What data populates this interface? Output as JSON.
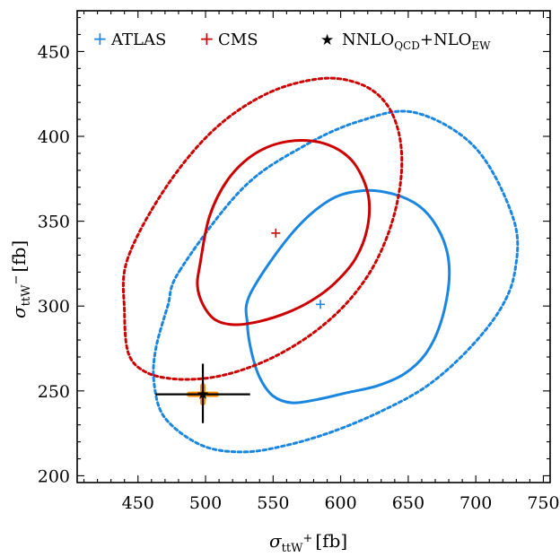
{
  "chart_data": {
    "type": "scatter",
    "title": "",
    "xlabel": {
      "symbol": "σ",
      "sub": "ttW",
      "sup": "+",
      "unit": "[fb]"
    },
    "ylabel": {
      "symbol": "σ",
      "sub": "ttW",
      "sup": "−",
      "unit": "[fb]"
    },
    "xlim": [
      405,
      755
    ],
    "ylim": [
      196,
      474
    ],
    "xticks": [
      450,
      500,
      550,
      600,
      650,
      700,
      750
    ],
    "yticks": [
      200,
      250,
      300,
      350,
      400,
      450
    ],
    "grid": false,
    "legend_position": "top",
    "colors": {
      "atlas": "#1a86e0",
      "cms": "#cc0000",
      "theory": "#000000",
      "theory_band": "#ff8c00"
    },
    "legend": [
      {
        "id": "atlas",
        "label": "ATLAS",
        "marker": "+"
      },
      {
        "id": "cms",
        "label": "CMS",
        "marker": "+"
      },
      {
        "id": "theory",
        "label_main": "NNLO",
        "label_sub1": "QCD",
        "label_mid": "+NLO",
        "label_sub2": "EW",
        "marker": "★"
      }
    ],
    "series": [
      {
        "name": "ATLAS",
        "point": [
          585,
          301
        ],
        "contours": [
          {
            "level": "inner",
            "style": "solid",
            "center": [
              585,
              301
            ],
            "x": [
              533,
              563,
              591,
              616,
              639,
              658,
              671,
              679,
              680,
              674,
              663,
              647,
              627,
              605,
              583,
              564,
              550,
              540,
              534,
              531,
              533
            ],
            "y": [
              307,
              342,
              362,
              368,
              366,
              359,
              347,
              331,
              313,
              290,
              272,
              260,
              253,
              249,
              245,
              243,
              247,
              258,
              273,
              289,
              307
            ]
          },
          {
            "level": "outer",
            "style": "dotted",
            "center": [
              585,
              301
            ],
            "x": [
              481,
              527,
              572,
              614,
              655,
              700,
              728,
              729,
              718,
              694,
              664,
              630,
              594,
              560,
              528,
              497,
              470,
              462,
              463,
              472,
              481
            ],
            "y": [
              321,
              369,
              394,
              409,
              414,
              393,
              351,
              321,
              298,
              274,
              253,
              238,
              226,
              218,
              214,
              218,
              234,
              254,
              274,
              300,
              321
            ]
          }
        ]
      },
      {
        "name": "CMS",
        "point": [
          552,
          343
        ],
        "contours": [
          {
            "level": "inner",
            "style": "solid",
            "center": [
              552,
              343
            ],
            "x": [
              496,
              503,
              517,
              537,
              561,
              587,
              608,
              620,
              620,
              611,
              595,
              578,
              560,
              540,
              521,
              507,
              498,
              494,
              496
            ],
            "y": [
              325,
              353,
              375,
              390,
              397,
              396,
              386,
              367,
              347,
              328,
              313,
              303,
              296,
              291,
              289,
              292,
              301,
              312,
              325
            ]
          },
          {
            "level": "outer",
            "style": "dotted",
            "center": [
              552,
              343
            ],
            "x": [
              442,
              469,
              505,
              545,
              585,
              614,
              633,
              643,
              645,
              639,
              626,
              608,
              586,
              560,
              533,
              505,
              478,
              456,
              443,
              440,
              442
            ],
            "y": [
              327,
              368,
              403,
              425,
              434,
              431,
              420,
              402,
              379,
              352,
              326,
              305,
              288,
              274,
              264,
              258,
              257,
              261,
              272,
              297,
              327
            ]
          }
        ]
      },
      {
        "name": "NNLO_QCD+NLO_EW",
        "point": [
          498,
          248
        ],
        "xerr": [
          35,
          35
        ],
        "yerr": [
          17,
          18
        ],
        "band_x": [
          488,
          508
        ],
        "band_y": [
          243,
          253
        ]
      }
    ]
  }
}
